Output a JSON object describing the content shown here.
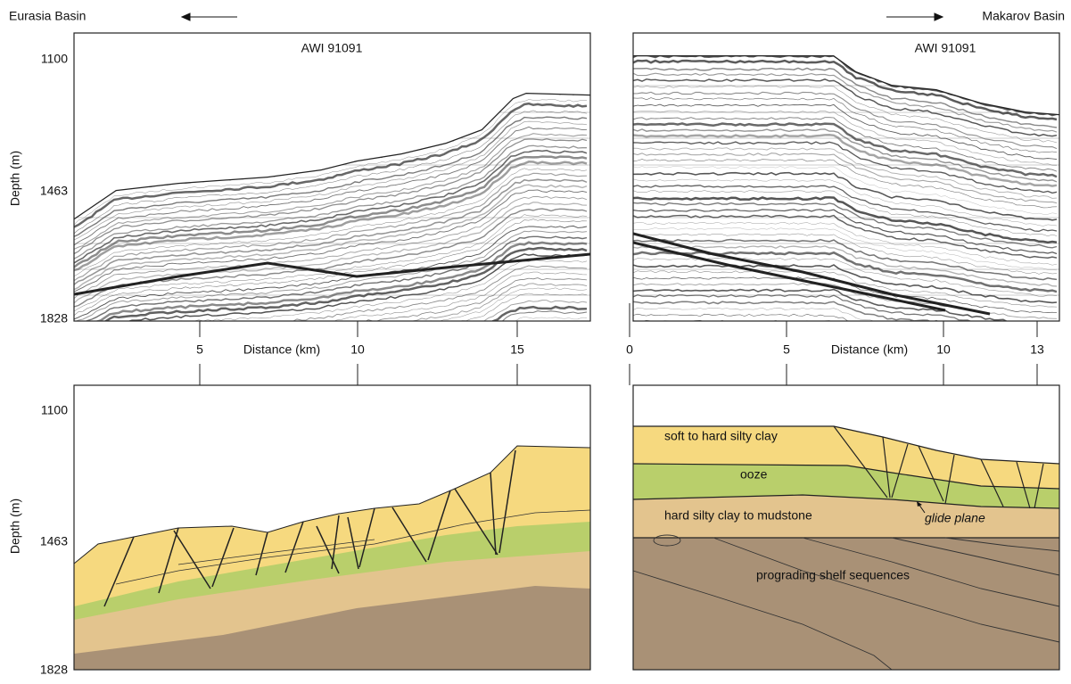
{
  "header": {
    "left_label": "Eurasia Basin",
    "right_label": "Makarov Basin"
  },
  "depth_axis": {
    "label": "Depth (m)",
    "ticks": [
      1100,
      1463,
      1828
    ]
  },
  "distance_axis": {
    "label": "Distance (km)",
    "left_ticks": [
      5,
      10,
      15
    ],
    "right_ticks": [
      0,
      5,
      10,
      13
    ]
  },
  "seismic_left": {
    "title": "AWI 91091"
  },
  "seismic_right": {
    "title": "AWI 91091"
  },
  "interpretation": {
    "layers": [
      "soft to hard silty clay",
      "ooze",
      "hard silty clay to mudstone",
      "prograding shelf sequences"
    ],
    "annotation": "glide plane"
  }
}
